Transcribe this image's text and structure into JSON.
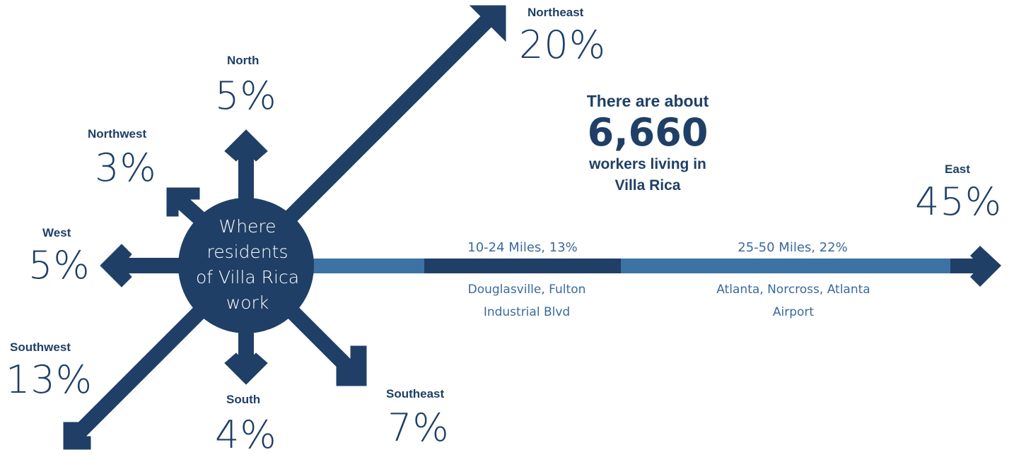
{
  "center": {
    "lines": [
      "Where",
      "residents",
      "of Villa Rica",
      "work"
    ]
  },
  "summary": {
    "line1": "There are about",
    "total": "6,660",
    "line2": "workers living in",
    "line3": "Villa Rica"
  },
  "directions": {
    "northeast": {
      "label": "Northeast",
      "pct": "20%"
    },
    "north": {
      "label": "North",
      "pct": "5%"
    },
    "northwest": {
      "label": "Northwest",
      "pct": "3%"
    },
    "west": {
      "label": "West",
      "pct": "5%"
    },
    "southwest": {
      "label": "Southwest",
      "pct": "13%"
    },
    "south": {
      "label": "South",
      "pct": "4%"
    },
    "southeast": {
      "label": "Southeast",
      "pct": "7%"
    },
    "east": {
      "label": "East",
      "pct": "45%"
    }
  },
  "east_segments": [
    {
      "label": "10-24 Miles, 13%",
      "places": [
        "Douglasville, Fulton",
        "Industrial Blvd"
      ]
    },
    {
      "label": "25-50 Miles, 22%",
      "places": [
        "Atlanta, Norcross, Atlanta",
        "Airport"
      ]
    }
  ],
  "colors": {
    "dark": "#1f3f66",
    "light": "#3d72a5",
    "circle": "#1f3f66"
  }
}
